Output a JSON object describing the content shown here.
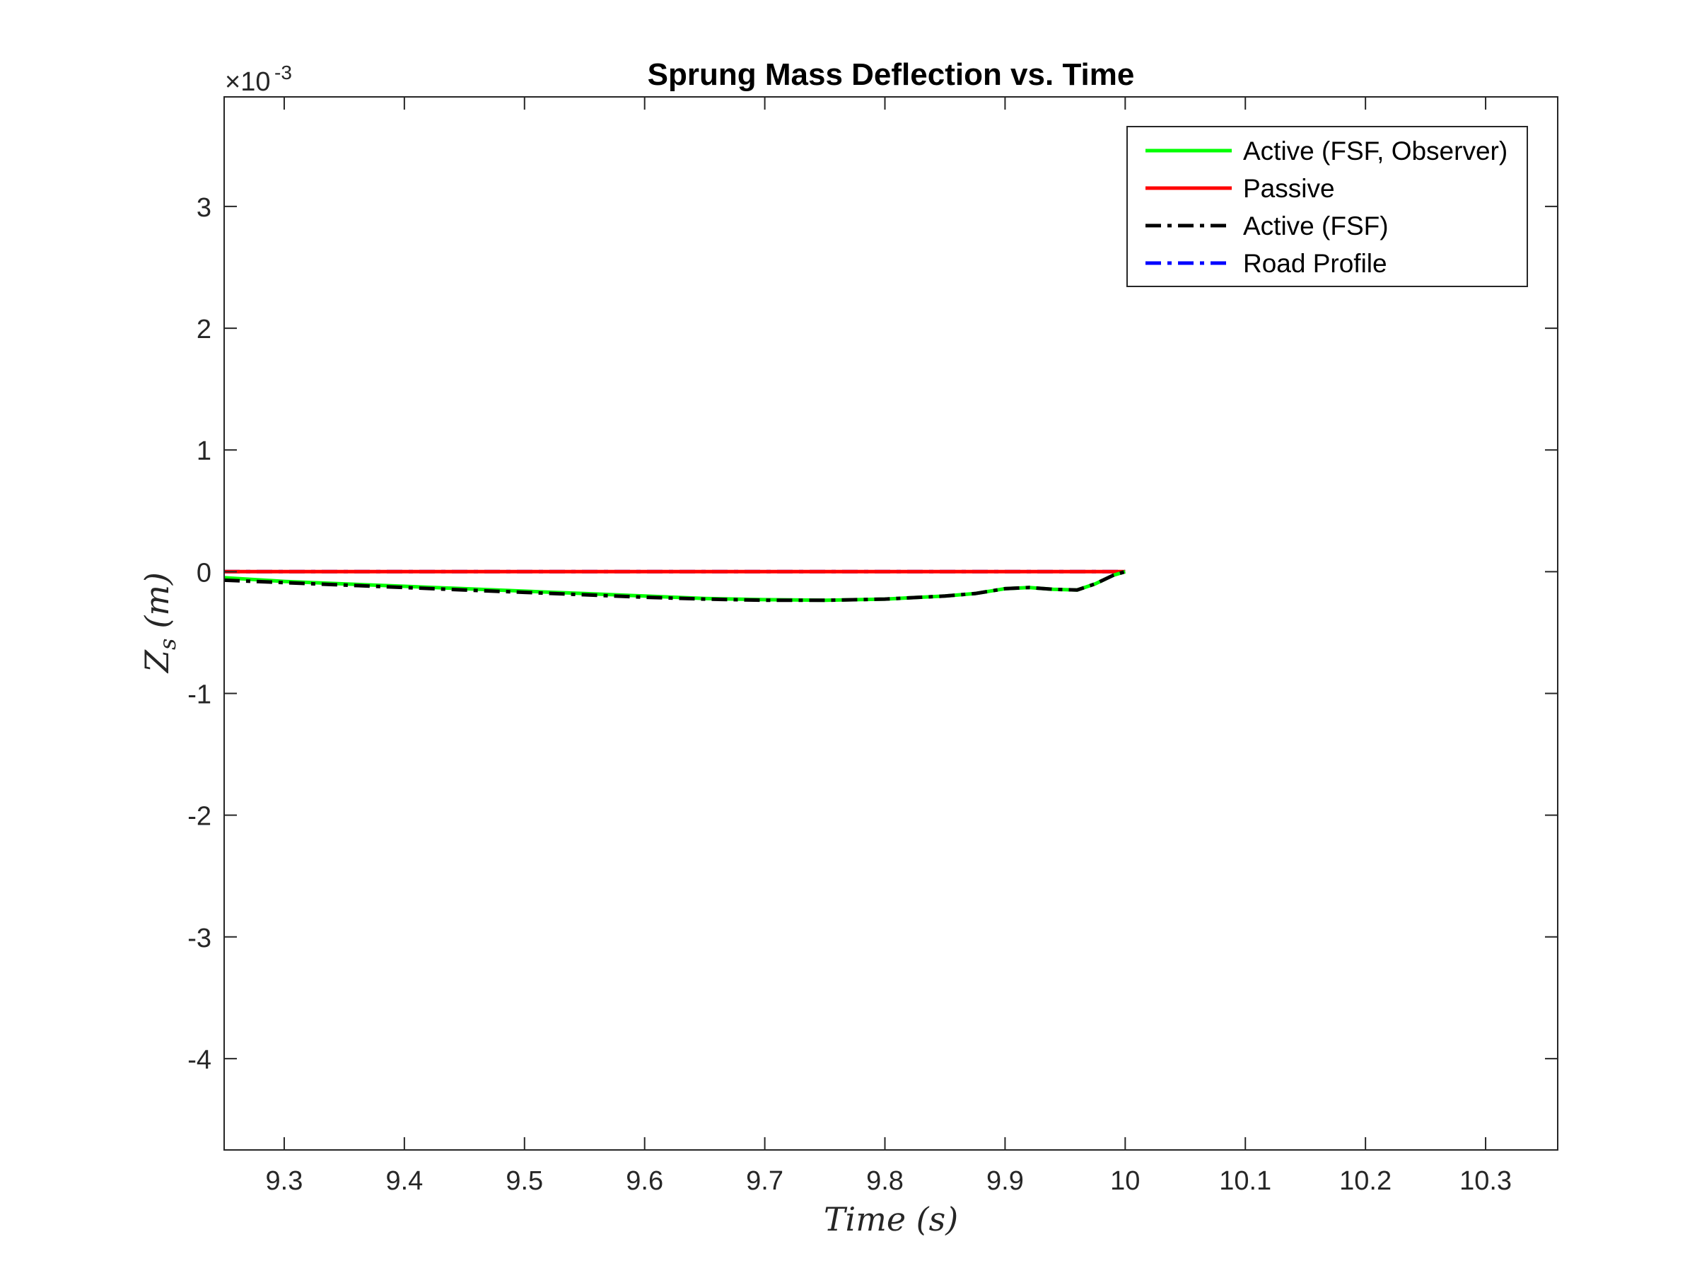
{
  "chart_data": {
    "type": "line",
    "title": "Sprung Mass Deflection vs. Time",
    "xlabel": "Time (s)",
    "ylabel": "Z_s (m)",
    "ylabel_base": "Z",
    "ylabel_sub": "s",
    "ylabel_unit": "(m)",
    "y_exponent_label": "×10",
    "y_exponent_power": "-3",
    "xlim": [
      9.25,
      10.36
    ],
    "ylim": [
      -4.75,
      3.9
    ],
    "y_scale": 0.001,
    "xticks": [
      9.3,
      9.4,
      9.5,
      9.6,
      9.7,
      9.8,
      9.9,
      10,
      10.1,
      10.2,
      10.3
    ],
    "xtick_labels": [
      "9.3",
      "9.4",
      "9.5",
      "9.6",
      "9.7",
      "9.8",
      "9.9",
      "10",
      "10.1",
      "10.2",
      "10.3"
    ],
    "yticks": [
      -4,
      -3,
      -2,
      -1,
      0,
      1,
      2,
      3
    ],
    "ytick_labels": [
      "-4",
      "-3",
      "-2",
      "-1",
      "0",
      "1",
      "2",
      "3"
    ],
    "grid": false,
    "legend_position": "top-right",
    "series": [
      {
        "name": "Active (FSF, Observer)",
        "color": "#00ff00",
        "style": "solid",
        "x": [
          9.25,
          9.3,
          9.35,
          9.4,
          9.45,
          9.5,
          9.55,
          9.6,
          9.65,
          9.7,
          9.75,
          9.8,
          9.85,
          9.875,
          9.9,
          9.92,
          9.94,
          9.96,
          9.975,
          9.99,
          10.0
        ],
        "y": [
          -0.05,
          -0.08,
          -0.1,
          -0.12,
          -0.14,
          -0.16,
          -0.18,
          -0.2,
          -0.22,
          -0.23,
          -0.235,
          -0.225,
          -0.2,
          -0.18,
          -0.14,
          -0.13,
          -0.145,
          -0.15,
          -0.1,
          -0.03,
          0.0
        ]
      },
      {
        "name": "Passive",
        "color": "#ff0000",
        "style": "solid",
        "x": [
          9.25,
          10.0
        ],
        "y": [
          0.0,
          0.0
        ]
      },
      {
        "name": "Active (FSF)",
        "color": "#000000",
        "style": "dashdot",
        "x": [
          9.25,
          9.3,
          9.35,
          9.4,
          9.45,
          9.5,
          9.55,
          9.6,
          9.65,
          9.7,
          9.75,
          9.8,
          9.85,
          9.875,
          9.9,
          9.92,
          9.94,
          9.96,
          9.975,
          9.99,
          10.0
        ],
        "y": [
          -0.07,
          -0.09,
          -0.11,
          -0.13,
          -0.15,
          -0.17,
          -0.19,
          -0.21,
          -0.225,
          -0.235,
          -0.235,
          -0.225,
          -0.2,
          -0.18,
          -0.14,
          -0.13,
          -0.145,
          -0.15,
          -0.1,
          -0.03,
          0.0
        ]
      },
      {
        "name": "Road Profile",
        "color": "#0000ff",
        "style": "dashdot",
        "x": [
          9.25,
          10.0
        ],
        "y": [
          0.0,
          0.0
        ]
      }
    ]
  }
}
